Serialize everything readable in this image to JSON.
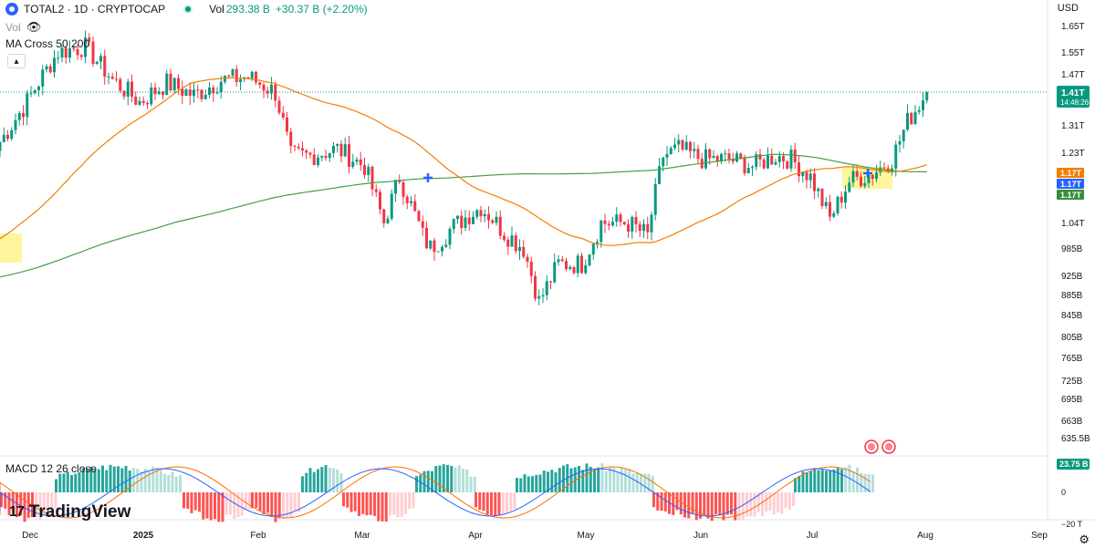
{
  "header": {
    "symbol": "TOTAL2 · 1D · CRYPTOCAP",
    "vol_label": "Vol",
    "vol_value": "293.38 B",
    "vol_change": "+30.37 B (+2.20%)",
    "vol_indicator_label": "Vol",
    "ma_label": "MA Cross 50 200",
    "currency": "USD",
    "live_icon": "live-dot-icon",
    "eye_icon": "eye-off-icon",
    "collapse_icon": "chevron-up-icon"
  },
  "macd": {
    "label": "MACD 12 26 close",
    "value_badge": "23.75 B",
    "zero_label": "0",
    "low_label": "−20 T"
  },
  "brand": {
    "name": "TradingView",
    "mark": "17"
  },
  "settings_icon": "gear-icon",
  "chart_data": {
    "type": "candlestick",
    "price_axis_ticks": [
      "1.65T",
      "1.55T",
      "1.47T",
      "1.41T",
      "1.31T",
      "1.23T",
      "1.17T",
      "1.04T",
      "985B",
      "925B",
      "885B",
      "845B",
      "805B",
      "765B",
      "725B",
      "695B",
      "663B",
      "635.5B"
    ],
    "time_axis_labels": [
      "Dec",
      "2025",
      "Feb",
      "Mar",
      "Apr",
      "May",
      "Jun",
      "Jul",
      "Aug",
      "Sep"
    ],
    "last_price_label": "1.41T",
    "countdown_label": "14:48:26",
    "ma_labels": [
      {
        "text": "1.17T",
        "color": "#f57c00"
      },
      {
        "text": "1.17T",
        "color": "#2962ff"
      },
      {
        "text": "1.17T",
        "color": "#388e3c"
      }
    ],
    "colors": {
      "up": "#089981",
      "down": "#f23645",
      "ma50": "#f57c00",
      "ma200": "#43a047",
      "cross": "#2962ff",
      "highlight": "#fff59d",
      "hist_up": "#26a69a",
      "hist_up_light": "#b2dfdb",
      "hist_down": "#ff5252",
      "hist_down_light": "#ffcdd2",
      "macd_line": "#2962ff",
      "signal_line": "#ff6d00"
    },
    "series": [
      {
        "name": "MA Cross 50 200",
        "values": []
      }
    ],
    "keypoints_close": [
      [
        "2024-11-20",
        1260000000000.0
      ],
      [
        "2024-11-27",
        1380000000000.0
      ],
      [
        "2024-12-05",
        1550000000000.0
      ],
      [
        "2024-12-12",
        1570000000000.0
      ],
      [
        "2024-12-19",
        1450000000000.0
      ],
      [
        "2024-12-26",
        1380000000000.0
      ],
      [
        "2025-01-02",
        1440000000000.0
      ],
      [
        "2025-01-09",
        1400000000000.0
      ],
      [
        "2025-01-16",
        1450000000000.0
      ],
      [
        "2025-01-23",
        1460000000000.0
      ],
      [
        "2025-01-30",
        1410000000000.0
      ],
      [
        "2025-02-03",
        1220000000000.0
      ],
      [
        "2025-02-08",
        1220000000000.0
      ],
      [
        "2025-02-15",
        1240000000000.0
      ],
      [
        "2025-02-22",
        1190000000000.0
      ],
      [
        "2025-02-27",
        1040000000000.0
      ],
      [
        "2025-03-03",
        1160000000000.0
      ],
      [
        "2025-03-09",
        1010000000000.0
      ],
      [
        "2025-03-11",
        985000000000.0
      ],
      [
        "2025-03-18",
        1040000000000.0
      ],
      [
        "2025-03-24",
        1080000000000.0
      ],
      [
        "2025-03-30",
        1020000000000.0
      ],
      [
        "2025-04-04",
        985000000000.0
      ],
      [
        "2025-04-08",
        870000000000.0
      ],
      [
        "2025-04-13",
        950000000000.0
      ],
      [
        "2025-04-19",
        950000000000.0
      ],
      [
        "2025-04-24",
        1040000000000.0
      ],
      [
        "2025-05-01",
        1040000000000.0
      ],
      [
        "2025-05-06",
        1010000000000.0
      ],
      [
        "2025-05-10",
        1220000000000.0
      ],
      [
        "2025-05-14",
        1240000000000.0
      ],
      [
        "2025-05-20",
        1210000000000.0
      ],
      [
        "2025-05-27",
        1210000000000.0
      ],
      [
        "2025-06-02",
        1190000000000.0
      ],
      [
        "2025-06-08",
        1220000000000.0
      ],
      [
        "2025-06-12",
        1210000000000.0
      ],
      [
        "2025-06-17",
        1160000000000.0
      ],
      [
        "2025-06-22",
        1050000000000.0
      ],
      [
        "2025-06-27",
        1150000000000.0
      ],
      [
        "2025-07-03",
        1170000000000.0
      ],
      [
        "2025-07-08",
        1210000000000.0
      ],
      [
        "2025-07-12",
        1320000000000.0
      ],
      [
        "2025-07-17",
        1410000000000.0
      ]
    ]
  }
}
